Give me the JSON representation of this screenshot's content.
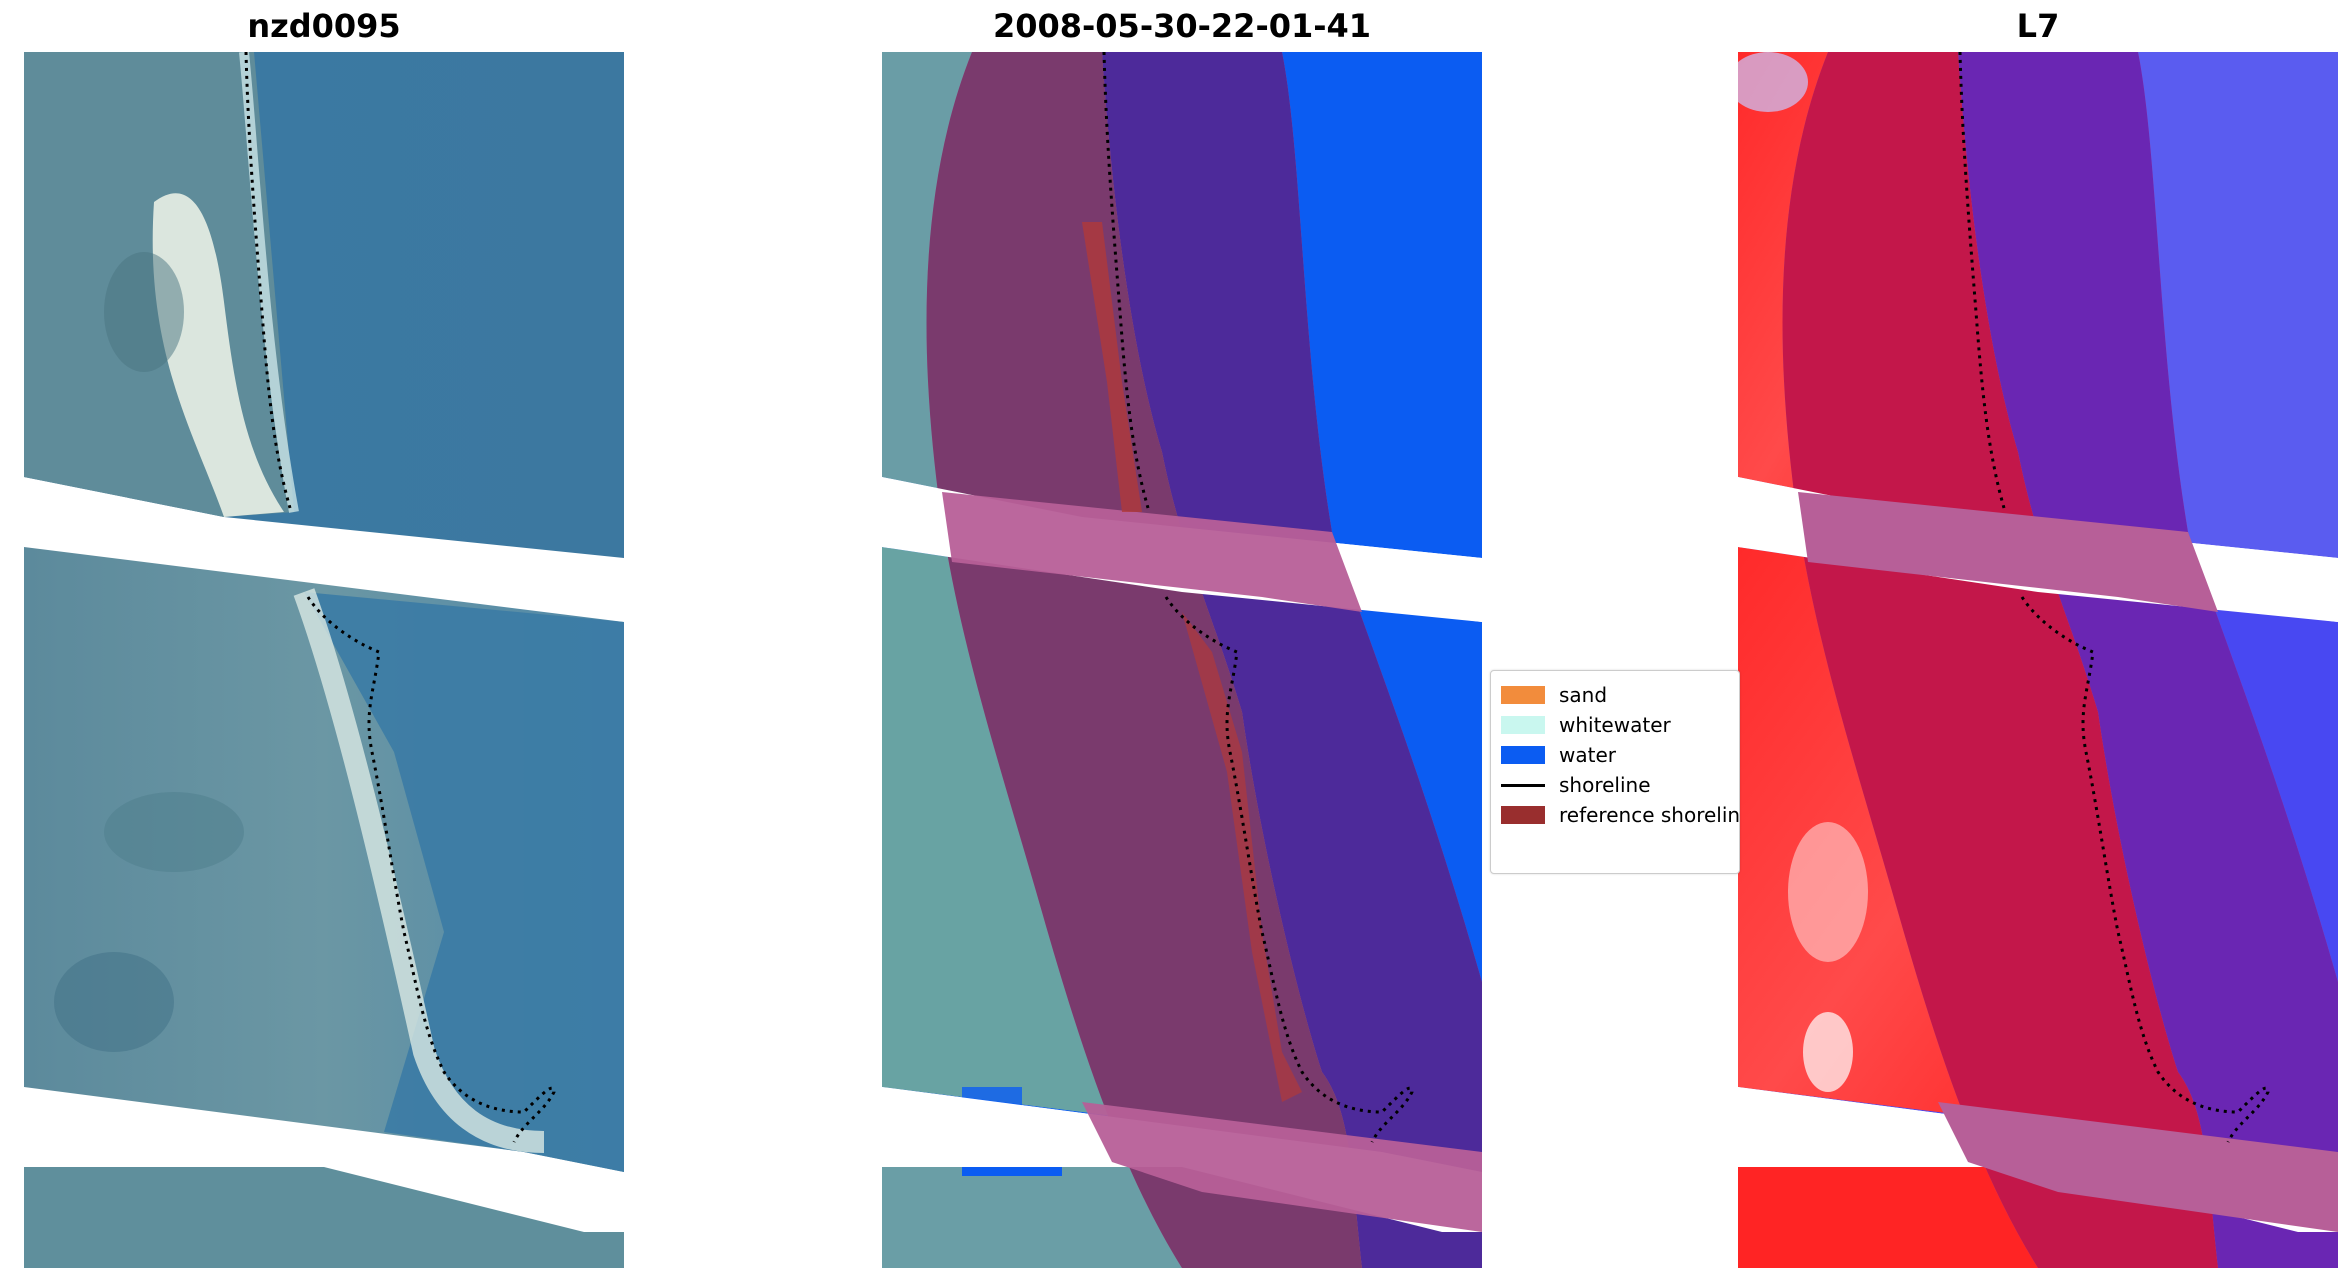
{
  "panels": [
    {
      "title": "nzd0095"
    },
    {
      "title": "2008-05-30-22-01-41"
    },
    {
      "title": "L7"
    }
  ],
  "legend": {
    "items": [
      {
        "label": "sand",
        "color": "#f28c3c"
      },
      {
        "label": "whitewater",
        "color": "#c9f7ef"
      },
      {
        "label": "water",
        "color": "#0b5cf2"
      },
      {
        "label": "shoreline",
        "color": "#000000"
      },
      {
        "label": "reference shoreline",
        "color": "#992e2e"
      }
    ]
  }
}
